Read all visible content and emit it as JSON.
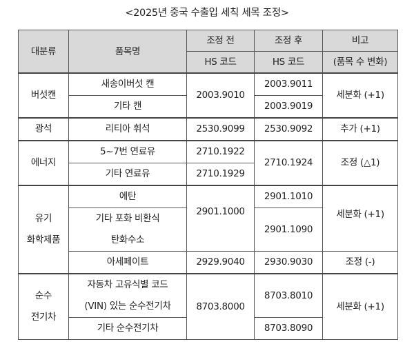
{
  "title": "<2025년 중국 수출입 세칙 세목 조정>",
  "table": {
    "headers": {
      "category": "대분류",
      "item_name": "품목명",
      "before_line1": "조정 전",
      "before_line2": "HS 코드",
      "after_line1": "조정 후",
      "after_line2": "HS 코드",
      "note_line1": "비고",
      "note_line2": "(품목 수 변화)"
    },
    "groups": [
      {
        "category": "버섯캔",
        "rows": [
          {
            "item": "새송이버섯 캔",
            "after": "2003.9011"
          },
          {
            "item": "기타 캔",
            "after": "2003.9019"
          }
        ],
        "before": "2003.9010",
        "note": "세분화 (+1)"
      },
      {
        "category": "광석",
        "rows": [
          {
            "item": "리티아 휘석",
            "before": "2530.9099",
            "after": "2530.9092",
            "note": "추가 (+1)"
          }
        ]
      },
      {
        "category": "에너지",
        "rows": [
          {
            "item": "5~7번 연료유",
            "before": "2710.1922"
          },
          {
            "item": "기타 연료유",
            "before": "2710.1929"
          }
        ],
        "after": "2710.1924",
        "note": "조정 (△1)"
      },
      {
        "category_line1": "유기",
        "category_line2": "화학제품",
        "rows": [
          {
            "item": "에탄",
            "after": "2901.1010"
          },
          {
            "item_line1": "기타 포화 비환식",
            "item_line2": "탄화수소",
            "after": "2901.1090"
          },
          {
            "item": "아세페이트",
            "before": "2929.9040",
            "after": "2930.9030",
            "note": "조정 (-)"
          }
        ],
        "before": "2901.1000",
        "note": "세분화 (+1)"
      },
      {
        "category_line1": "순수",
        "category_line2": "전기차",
        "rows": [
          {
            "item_line1": "자동차 고유식별 코드",
            "item_line2": "(VIN) 있는 순수전기차",
            "after": "8703.8010"
          },
          {
            "item": "기타 순수전기차",
            "after": "8703.8090"
          }
        ],
        "before": "8703.8000",
        "note": "세분화 (+1)"
      }
    ]
  }
}
